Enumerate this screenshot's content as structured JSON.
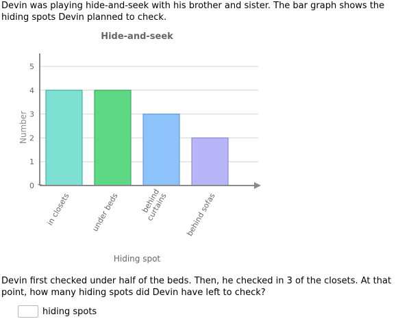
{
  "problem": {
    "intro": "Devin was playing hide-and-seek with his brother and sister. The bar graph shows the hiding spots Devin planned to check.",
    "question": "Devin first checked under half of the beds. Then, he checked in 3 of the closets. At that point, how many hiding spots did Devin have left to check?",
    "answer_value": "",
    "answer_unit": "hiding spots"
  },
  "chart_data": {
    "type": "bar",
    "title": "Hide-and-seek",
    "xlabel": "Hiding spot",
    "ylabel": "Number",
    "categories": [
      "in closets",
      "under beds",
      "behind curtains",
      "behind sofas"
    ],
    "category_lines": [
      [
        "in closets"
      ],
      [
        "under beds"
      ],
      [
        "behind",
        "curtains"
      ],
      [
        "behind sofas"
      ]
    ],
    "values": [
      4,
      4,
      3,
      2
    ],
    "yticks": [
      0,
      1,
      2,
      3,
      4,
      5
    ],
    "ylim": [
      0,
      5
    ],
    "grid": true,
    "colors": {
      "bars": [
        "#7edfd3",
        "#5dd985",
        "#8dc2fa",
        "#b8b5f8"
      ],
      "borders": [
        "#30a99a",
        "#22a34a",
        "#4f8fd8",
        "#7f7ad9"
      ],
      "grid": "#d2d2d2",
      "axis": "#8a8a8a",
      "label": "#666666"
    }
  }
}
